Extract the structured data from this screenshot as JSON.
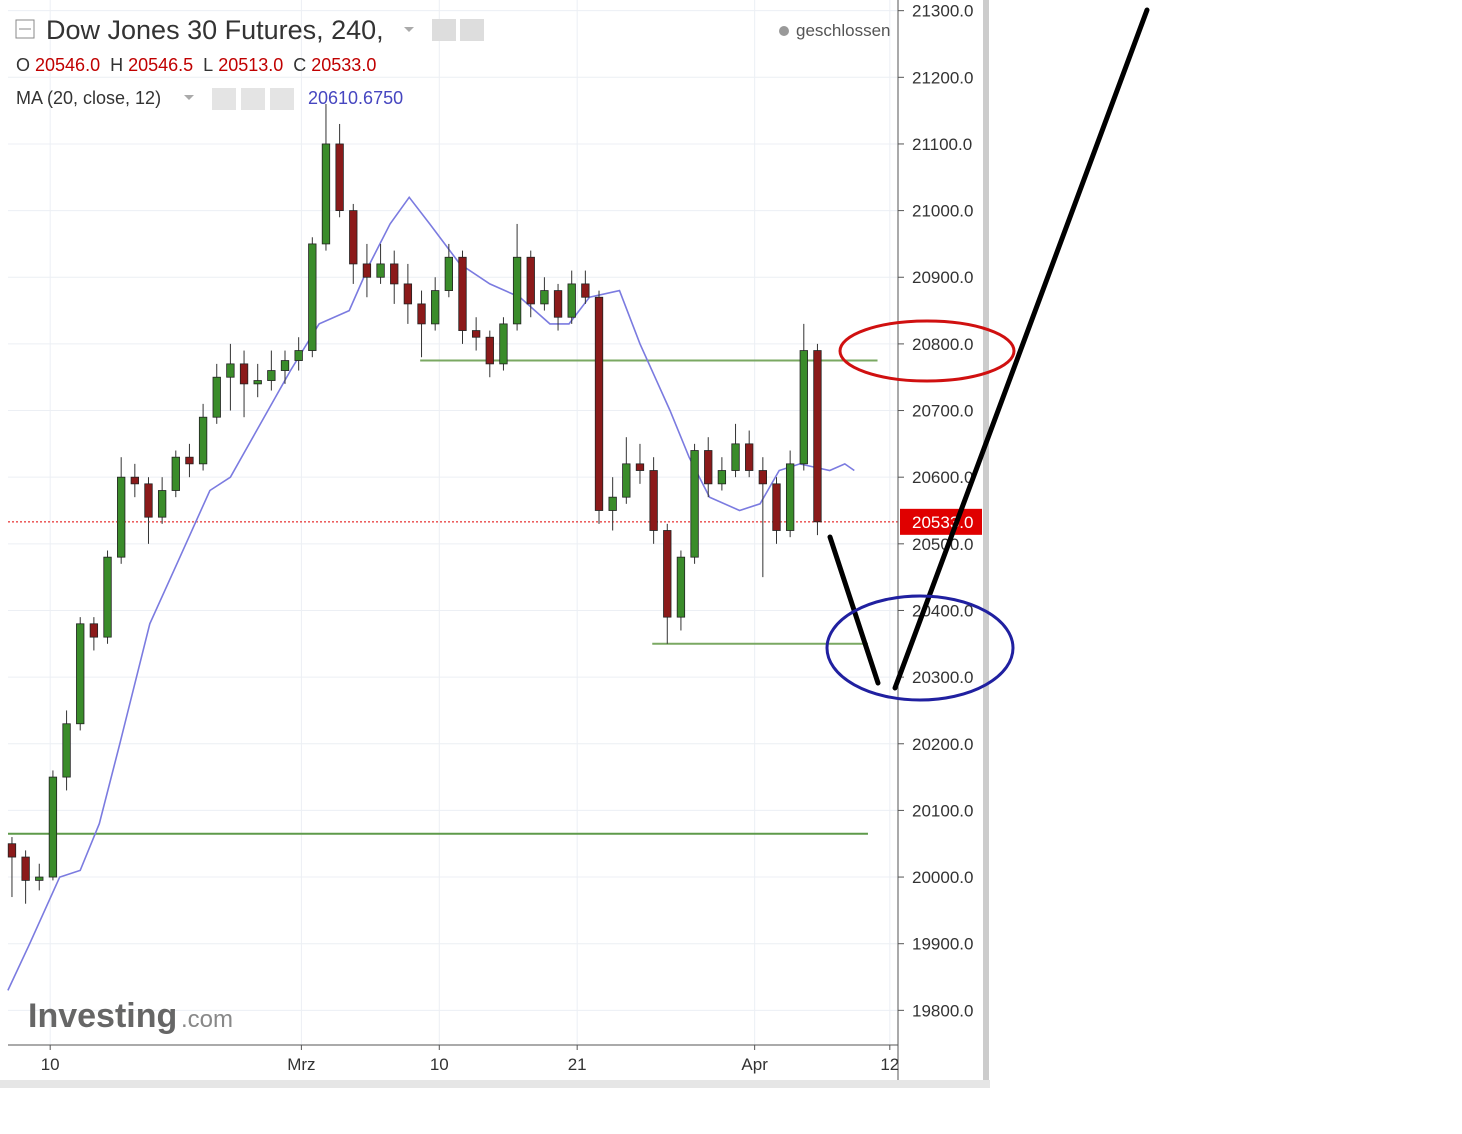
{
  "chart_data": {
    "type": "candlestick",
    "title": "Dow Jones 30 Futures, 240,",
    "status": "geschlossen",
    "ohlc_legend": {
      "labels": [
        "O",
        "H",
        "L",
        "C"
      ],
      "values": [
        "20546.0",
        "20546.5",
        "20513.0",
        "20533.0"
      ]
    },
    "logo": "Investing",
    "logo_suffix": ".com",
    "xlim": [
      -0.29,
      64.9
    ],
    "xticks": [
      {
        "value": 2.8,
        "label": "10"
      },
      {
        "value": 21.2,
        "label": "Mrz"
      },
      {
        "value": 31.3,
        "label": "10"
      },
      {
        "value": 41.4,
        "label": "21"
      },
      {
        "value": 54.4,
        "label": "Apr"
      },
      {
        "value": 64.3,
        "label": "12"
      }
    ],
    "ylim": [
      19748,
      21316
    ],
    "yticks": [
      {
        "value": 19800,
        "label": "19800.0"
      },
      {
        "value": 19900,
        "label": "19900.0"
      },
      {
        "value": 20000,
        "label": "20000.0"
      },
      {
        "value": 20100,
        "label": "20100.0"
      },
      {
        "value": 20200,
        "label": "20200.0"
      },
      {
        "value": 20300,
        "label": "20300.0"
      },
      {
        "value": 20400,
        "label": "20400.0"
      },
      {
        "value": 20500,
        "label": "20500.0"
      },
      {
        "value": 20600,
        "label": "20600.0"
      },
      {
        "value": 20700,
        "label": "20700.0"
      },
      {
        "value": 20800,
        "label": "20800.0"
      },
      {
        "value": 20900,
        "label": "20900.0"
      },
      {
        "value": 21000,
        "label": "21000.0"
      },
      {
        "value": 21100,
        "label": "21100.0"
      },
      {
        "value": 21200,
        "label": "21200.0"
      },
      {
        "value": 21300,
        "label": "21300.0"
      }
    ],
    "grid": true,
    "up_color": "#3a8c2a",
    "down_color": "#8b1a1a",
    "ohlc": [
      [
        20050,
        20060,
        19970,
        20030
      ],
      [
        20030,
        20040,
        19960,
        19995
      ],
      [
        19995,
        20020,
        19980,
        20000
      ],
      [
        20000,
        20160,
        19995,
        20150
      ],
      [
        20150,
        20250,
        20130,
        20230
      ],
      [
        20230,
        20390,
        20220,
        20380
      ],
      [
        20380,
        20390,
        20340,
        20360
      ],
      [
        20360,
        20490,
        20350,
        20480
      ],
      [
        20480,
        20630,
        20470,
        20600
      ],
      [
        20600,
        20620,
        20570,
        20590
      ],
      [
        20590,
        20600,
        20500,
        20540
      ],
      [
        20540,
        20600,
        20530,
        20580
      ],
      [
        20580,
        20640,
        20570,
        20630
      ],
      [
        20630,
        20650,
        20600,
        20620
      ],
      [
        20620,
        20710,
        20610,
        20690
      ],
      [
        20690,
        20770,
        20680,
        20750
      ],
      [
        20750,
        20800,
        20700,
        20770
      ],
      [
        20770,
        20790,
        20690,
        20740
      ],
      [
        20740,
        20770,
        20720,
        20745
      ],
      [
        20745,
        20790,
        20730,
        20760
      ],
      [
        20760,
        20790,
        20740,
        20775
      ],
      [
        20775,
        20810,
        20760,
        20790
      ],
      [
        20790,
        20960,
        20780,
        20950
      ],
      [
        20950,
        21160,
        20940,
        21100
      ],
      [
        21100,
        21130,
        20990,
        21000
      ],
      [
        21000,
        21010,
        20890,
        20920
      ],
      [
        20920,
        20950,
        20870,
        20900
      ],
      [
        20900,
        20950,
        20890,
        20920
      ],
      [
        20920,
        20940,
        20860,
        20890
      ],
      [
        20890,
        20920,
        20830,
        20860
      ],
      [
        20860,
        20880,
        20780,
        20830
      ],
      [
        20830,
        20900,
        20820,
        20880
      ],
      [
        20880,
        20950,
        20870,
        20930
      ],
      [
        20930,
        20940,
        20800,
        20820
      ],
      [
        20820,
        20840,
        20790,
        20810
      ],
      [
        20810,
        20820,
        20750,
        20770
      ],
      [
        20770,
        20840,
        20760,
        20830
      ],
      [
        20830,
        20980,
        20820,
        20930
      ],
      [
        20930,
        20940,
        20840,
        20860
      ],
      [
        20860,
        20900,
        20850,
        20880
      ],
      [
        20880,
        20890,
        20820,
        20840
      ],
      [
        20840,
        20910,
        20830,
        20890
      ],
      [
        20890,
        20910,
        20860,
        20870
      ],
      [
        20870,
        20880,
        20530,
        20550
      ],
      [
        20550,
        20600,
        20520,
        20570
      ],
      [
        20570,
        20660,
        20560,
        20620
      ],
      [
        20620,
        20650,
        20590,
        20610
      ],
      [
        20610,
        20630,
        20500,
        20520
      ],
      [
        20520,
        20530,
        20350,
        20390
      ],
      [
        20390,
        20490,
        20370,
        20480
      ],
      [
        20480,
        20650,
        20470,
        20640
      ],
      [
        20640,
        20660,
        20570,
        20590
      ],
      [
        20590,
        20630,
        20580,
        20610
      ],
      [
        20610,
        20680,
        20600,
        20650
      ],
      [
        20650,
        20670,
        20600,
        20610
      ],
      [
        20610,
        20630,
        20450,
        20590
      ],
      [
        20590,
        20600,
        20500,
        20520
      ],
      [
        20520,
        20640,
        20510,
        20620
      ],
      [
        20620,
        20830,
        20610,
        20790
      ],
      [
        20790,
        20800,
        20513,
        20533
      ]
    ],
    "series": [
      {
        "name": "MA (20, close, 12)",
        "value_label": "20610.6750",
        "color": "#7b7be0",
        "x": [
          -0.3,
          1.3,
          3.5,
          5.0,
          6.4,
          7.9,
          10.1,
          12.3,
          14.5,
          16.0,
          18.2,
          20.4,
          22.5,
          24.7,
          26.2,
          27.7,
          29.1,
          30.6,
          32.8,
          35.0,
          37.2,
          39.4,
          40.8,
          42.3,
          44.5,
          46.0,
          48.2,
          49.6,
          51.1,
          53.3,
          54.8,
          56.2,
          57.7,
          59.9,
          61.0,
          61.7
        ],
        "values": [
          19830,
          19900,
          20000,
          20010,
          20080,
          20200,
          20380,
          20480,
          20580,
          20600,
          20680,
          20760,
          20830,
          20850,
          20920,
          20980,
          21020,
          20980,
          20920,
          20890,
          20870,
          20830,
          20830,
          20870,
          20880,
          20800,
          20700,
          20630,
          20570,
          20550,
          20560,
          20610,
          20620,
          20610,
          20620,
          20610
        ]
      }
    ],
    "hlines": [
      {
        "value": 20775,
        "x": [
          29.9,
          63.4
        ],
        "color": "#7aa862"
      },
      {
        "value": 20350,
        "x": [
          46.9,
          62.7
        ],
        "color": "#7aa862"
      },
      {
        "value": 20065,
        "x": [
          -0.29,
          62.7
        ],
        "color": "#5e9a4a"
      }
    ],
    "last_price": {
      "value": 20533,
      "label": "20533.0",
      "color": "#e00000"
    }
  }
}
